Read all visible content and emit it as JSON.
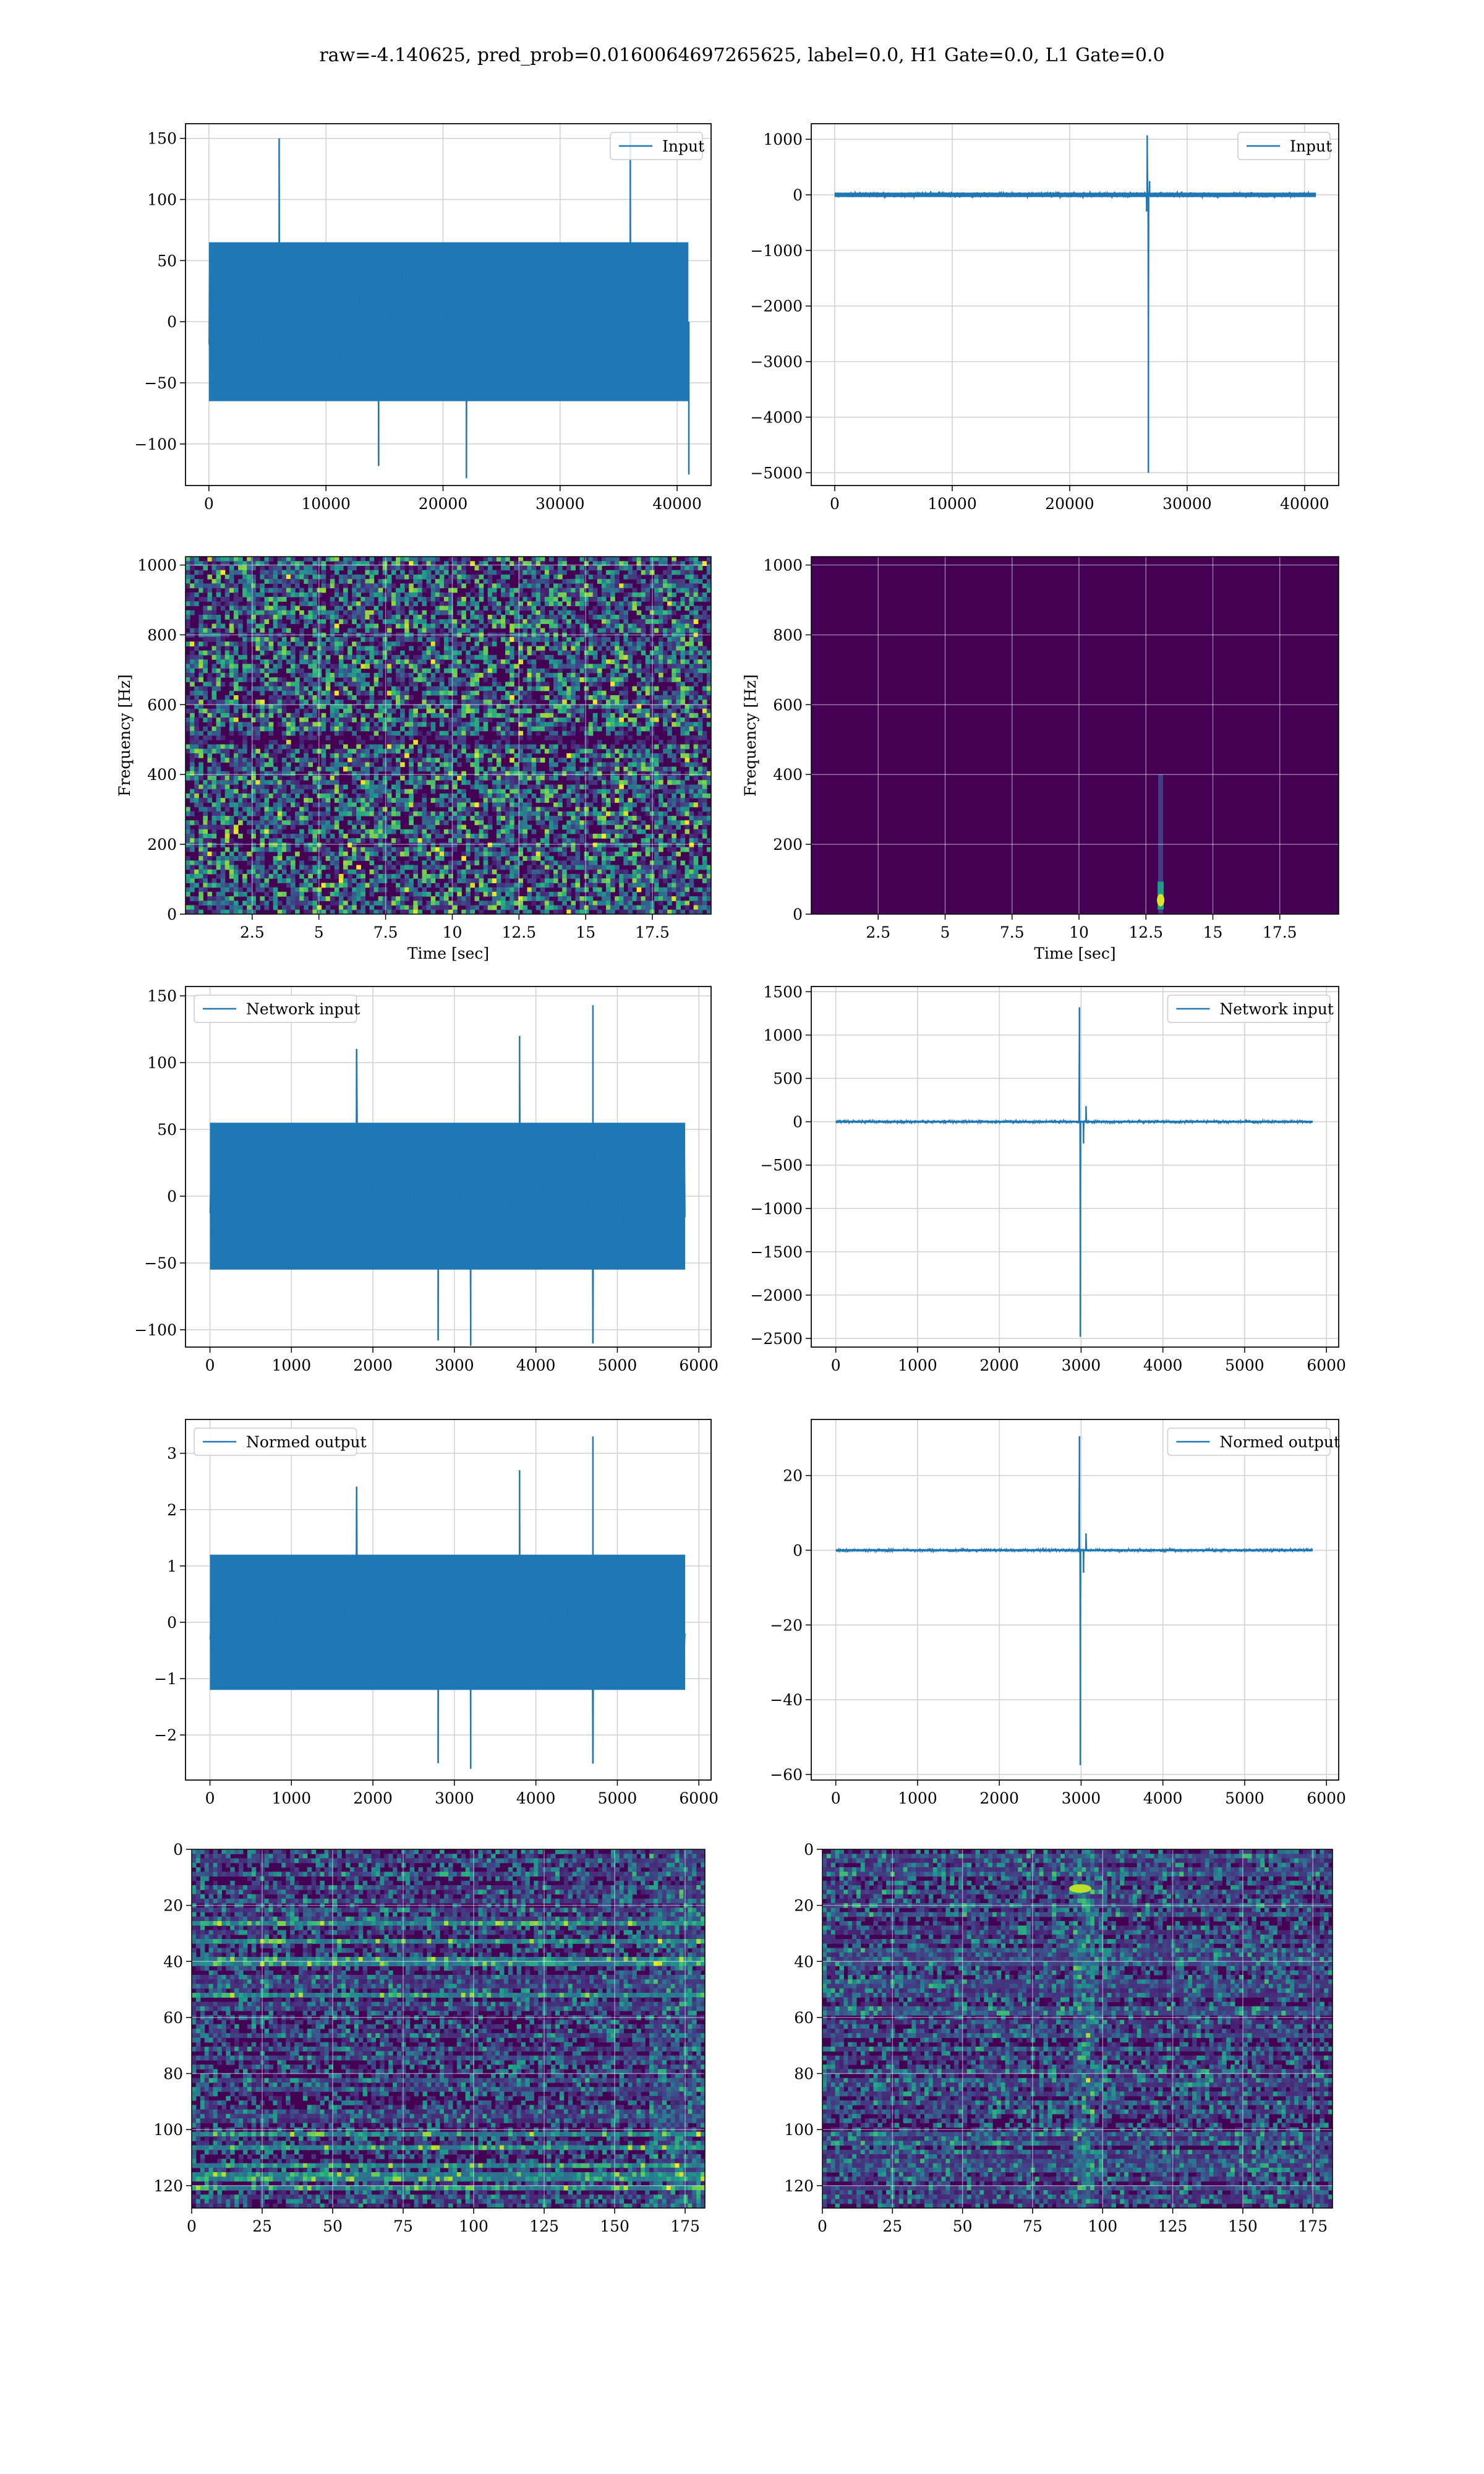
{
  "figure": {
    "suptitle": "raw=-4.140625, pred_prob=0.0160064697265625, label=0.0, H1 Gate=0.0, L1 Gate=0.0"
  },
  "colors": {
    "line": "#1f77b4",
    "grid": "#d0d0d0",
    "viridis_dark": "#440154"
  },
  "chart_data": [
    {
      "id": "input-h1",
      "type": "line",
      "legend": "Input",
      "legend_loc": "upper right",
      "xlim": [
        -2000,
        42900
      ],
      "ylim": [
        -134,
        162
      ],
      "xticks": [
        0,
        10000,
        20000,
        30000,
        40000
      ],
      "yticks": [
        -100,
        -50,
        0,
        50,
        100,
        150
      ],
      "series": [
        {
          "x_range": [
            0,
            40960
          ],
          "noise_envelope": 55,
          "band": 65,
          "spikes": [
            [
              6000,
              150
            ],
            [
              36000,
              155
            ],
            [
              22000,
              -128
            ],
            [
              41000,
              -125
            ],
            [
              14500,
              -118
            ]
          ]
        }
      ],
      "grid": true
    },
    {
      "id": "input-l1",
      "type": "line",
      "legend": "Input",
      "legend_loc": "upper right",
      "xlim": [
        -2000,
        42900
      ],
      "ylim": [
        -5230,
        1280
      ],
      "xticks": [
        0,
        10000,
        20000,
        30000,
        40000
      ],
      "yticks": [
        -5000,
        -4000,
        -3000,
        -2000,
        -1000,
        0,
        1000
      ],
      "series": [
        {
          "x_range": [
            0,
            40960
          ],
          "noise_envelope": 60,
          "band": 40,
          "spikes": [
            [
              26600,
              1070
            ],
            [
              26700,
              -5000
            ],
            [
              26550,
              -300
            ],
            [
              26800,
              250
            ]
          ]
        }
      ],
      "grid": true
    },
    {
      "id": "spec-h1",
      "type": "heatmap",
      "style": "noise",
      "xlabel": "Time [sec]",
      "ylabel": "Frequency [Hz]",
      "xlim": [
        0,
        19.7
      ],
      "ylim": [
        0,
        1024
      ],
      "xticks": [
        2.5,
        5.0,
        7.5,
        10.0,
        12.5,
        15.0,
        17.5
      ],
      "yticks": [
        0,
        200,
        400,
        600,
        800,
        1000
      ],
      "grid": true
    },
    {
      "id": "spec-l1",
      "type": "heatmap",
      "style": "dark",
      "xlabel": "Time [sec]",
      "ylabel": "Frequency [Hz]",
      "xlim": [
        0,
        19.7
      ],
      "ylim": [
        0,
        1024
      ],
      "xticks": [
        2.5,
        5.0,
        7.5,
        10.0,
        12.5,
        15.0,
        17.5
      ],
      "yticks": [
        0,
        200,
        400,
        600,
        800,
        1000
      ],
      "grid": true,
      "hotspot": {
        "t": 13.05,
        "f": 40
      }
    },
    {
      "id": "network-input-h1",
      "type": "line",
      "legend": "Network input",
      "legend_loc": "upper left",
      "xlim": [
        -300,
        6150
      ],
      "ylim": [
        -113,
        157
      ],
      "xticks": [
        0,
        1000,
        2000,
        3000,
        4000,
        5000,
        6000
      ],
      "yticks": [
        -100,
        -50,
        0,
        50,
        100,
        150
      ],
      "series": [
        {
          "x_range": [
            0,
            5832
          ],
          "noise_envelope": 50,
          "band": 55,
          "spikes": [
            [
              4700,
              143
            ],
            [
              3800,
              120
            ],
            [
              1800,
              110
            ],
            [
              2800,
              -108
            ],
            [
              3200,
              -112
            ],
            [
              4700,
              -110
            ]
          ]
        }
      ],
      "grid": true
    },
    {
      "id": "network-input-l1",
      "type": "line",
      "legend": "Network input",
      "legend_loc": "upper right",
      "xlim": [
        -300,
        6150
      ],
      "ylim": [
        -2600,
        1560
      ],
      "xticks": [
        0,
        1000,
        2000,
        3000,
        4000,
        5000,
        6000
      ],
      "yticks": [
        -2500,
        -2000,
        -1500,
        -1000,
        -500,
        0,
        500,
        1000,
        1500
      ],
      "series": [
        {
          "x_range": [
            0,
            5832
          ],
          "noise_envelope": 22,
          "band": 12,
          "spikes": [
            [
              2980,
              1320
            ],
            [
              2990,
              -2480
            ],
            [
              3060,
              180
            ],
            [
              3030,
              -250
            ]
          ]
        }
      ],
      "grid": true
    },
    {
      "id": "normed-output-h1",
      "type": "line",
      "legend": "Normed output",
      "legend_loc": "upper left",
      "xlim": [
        -300,
        6150
      ],
      "ylim": [
        -2.8,
        3.6
      ],
      "xticks": [
        0,
        1000,
        2000,
        3000,
        4000,
        5000,
        6000
      ],
      "yticks": [
        -2,
        -1,
        0,
        1,
        2,
        3
      ],
      "series": [
        {
          "x_range": [
            0,
            5832
          ],
          "noise_envelope": 1.0,
          "band": 1.2,
          "spikes": [
            [
              4700,
              3.3
            ],
            [
              3800,
              2.7
            ],
            [
              1800,
              2.4
            ],
            [
              2800,
              -2.5
            ],
            [
              3200,
              -2.6
            ],
            [
              4700,
              -2.5
            ]
          ]
        }
      ],
      "grid": true
    },
    {
      "id": "normed-output-l1",
      "type": "line",
      "legend": "Normed output",
      "legend_loc": "upper right",
      "xlim": [
        -300,
        6150
      ],
      "ylim": [
        -61.5,
        35
      ],
      "xticks": [
        0,
        1000,
        2000,
        3000,
        4000,
        5000,
        6000
      ],
      "yticks": [
        -60,
        -40,
        -20,
        0,
        20
      ],
      "series": [
        {
          "x_range": [
            0,
            5832
          ],
          "noise_envelope": 0.5,
          "band": 0.3,
          "spikes": [
            [
              2980,
              30.5
            ],
            [
              2990,
              -57.5
            ],
            [
              3060,
              4.5
            ],
            [
              3030,
              -6
            ]
          ]
        }
      ],
      "grid": true
    },
    {
      "id": "features-h1",
      "type": "heatmap",
      "style": "stripes",
      "xlim": [
        0,
        182
      ],
      "ylim": [
        0,
        128
      ],
      "y_inverted": true,
      "xticks": [
        0,
        25,
        50,
        75,
        100,
        125,
        150,
        175
      ],
      "yticks": [
        0,
        20,
        40,
        60,
        80,
        100,
        120
      ],
      "grid": true
    },
    {
      "id": "features-l1",
      "type": "heatmap",
      "style": "stripes-burst",
      "xlim": [
        0,
        182
      ],
      "ylim": [
        0,
        128
      ],
      "y_inverted": true,
      "xticks": [
        0,
        25,
        50,
        75,
        100,
        125,
        150,
        175
      ],
      "yticks": [
        0,
        20,
        40,
        60,
        80,
        100,
        120
      ],
      "grid": true,
      "hotspot": {
        "col": 92,
        "row": 14
      }
    }
  ]
}
